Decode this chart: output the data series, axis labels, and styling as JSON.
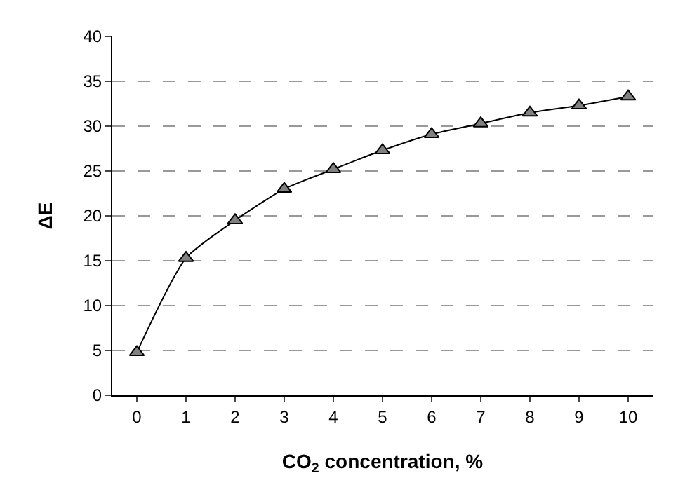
{
  "chart_data": {
    "type": "line",
    "xlabel": "CO$_{2}$ concentration, %",
    "ylabel": "ΔE",
    "categories": [
      "0",
      "1",
      "2",
      "3",
      "4",
      "5",
      "6",
      "7",
      "8",
      "9",
      "10"
    ],
    "series": [
      {
        "color": "#808080",
        "values": [
          4.8,
          15.3,
          19.5,
          23,
          25.2,
          27.3,
          29.1,
          30.3,
          31.5,
          32.3,
          33.3
        ]
      }
    ],
    "ylim": [
      0,
      40
    ],
    "yticks": [
      0,
      5,
      10,
      15,
      20,
      25,
      30,
      35,
      40
    ],
    "grid": "y",
    "marker": "triangle",
    "line_style": "solid",
    "legend": false
  }
}
